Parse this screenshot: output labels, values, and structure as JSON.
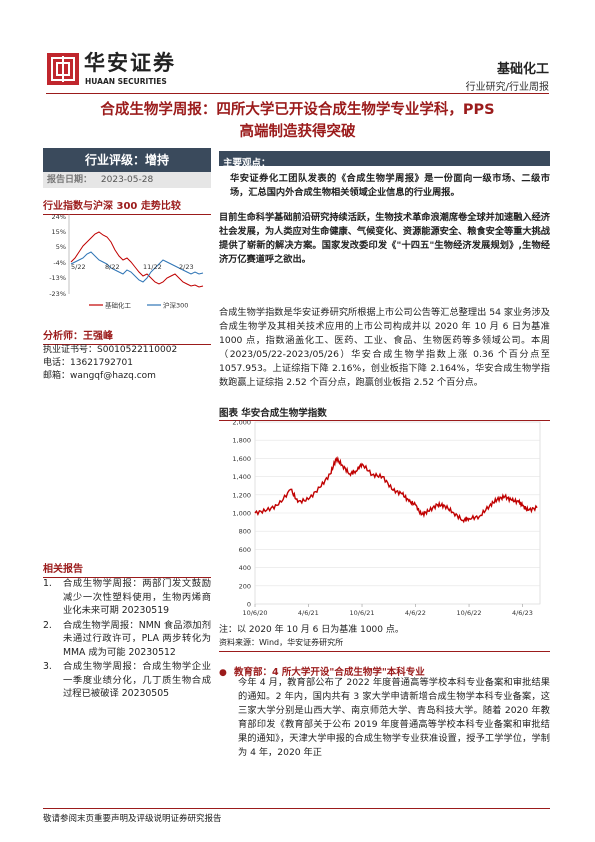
{
  "header": {
    "logo_cn": "华安证券",
    "logo_en": "HUAAN SECURITIES",
    "sector": "基础化工",
    "doc_type": "行业研究/行业周报"
  },
  "title_lines": [
    "合成生物学周报：四所大学已开设合成生物学专业学科，PPS",
    "高端制造获得突破"
  ],
  "rating": {
    "label": "行业评级：增持",
    "date_label": "报告日期：",
    "date_value": "2023-05-28"
  },
  "index_chart": {
    "title": "行业指数与沪深 300 走势比较",
    "yticks": [
      "24%",
      "15%",
      "5%",
      "-4%",
      "-13%",
      "-23%"
    ],
    "xticks": [
      "5/22",
      "8/22",
      "11/22",
      "2/23"
    ],
    "legend": [
      "基础化工",
      "沪深300"
    ]
  },
  "analyst": {
    "name": "分析师：王强峰",
    "cert_label": "执业证书号：",
    "cert_value": "S0010522110002",
    "phone_label": "电话：",
    "phone_value": "13621792701",
    "email_label": "邮箱：",
    "email_value": "wangqf@hazq.com"
  },
  "related": {
    "title": "相关报告",
    "items": [
      {
        "num": "1.",
        "text": "合成生物学周报：两部门发文鼓励减少一次性塑料使用，生物丙烯商业化未来可期 20230519"
      },
      {
        "num": "2.",
        "text": "合成生物学周报：NMN 食品添加剂未通过行政许可，PLA 两步转化为 MMA 成为可能 20230512"
      },
      {
        "num": "3.",
        "text": "合成生物学周报：合成生物学企业一季度业绩分化，几丁质生物合成过程已被破译 20230505"
      }
    ]
  },
  "main_points": {
    "title": "主要观点：",
    "p1": "华安证券化工团队发表的《合成生物学周报》是一份面向一级市场、二级市场，汇总国内外合成生物相关领域企业信息的行业周报。",
    "p2": "目前生命科学基础前沿研究持续活跃，生物技术革命浪潮席卷全球并加速融入经济社会发展，为人类应对生命健康、气候变化、资源能源安全、粮食安全等重大挑战提供了崭新的解决方案。国家发改委印发《\"十四五\"生物经济发展规划》,生物经济万亿赛道呼之欲出。",
    "p3": "合成生物学指数是华安证券研究所根据上市公司公告等汇总整理出 54 家业务涉及合成生物学及其相关技术应用的上市公司构成并以 2020 年 10 月 6 日为基准 1000 点，指数涵盖化工、医药、工业、食品、生物医药等多领域公司。本周（2023/05/22-2023/05/26）华安合成生物学指数上涨 0.36 个百分点至 1057.953。上证综指下降 2.16%，创业板指下降 2.164%，华安合成生物学指数跑赢上证综指 2.52 个百分点，跑赢创业板指 2.52 个百分点。"
  },
  "figure": {
    "title": "图表 华安合成生物学指数",
    "note": "注：以 2020 年 10 月 6 日为基准 1000 点。",
    "source": "资料来源：Wind，华安证券研究所"
  },
  "chart_data": {
    "type": "line",
    "title": "图表 华安合成生物学指数",
    "xlabel": "",
    "ylabel": "",
    "ylim": [
      0,
      2000
    ],
    "yticks": [
      "2,000",
      "1,800",
      "1,600",
      "1,400",
      "1,200",
      "1,000",
      "800",
      "600",
      "400",
      "200",
      "0"
    ],
    "xticks": [
      "10/6/20",
      "4/6/21",
      "10/6/21",
      "4/6/22",
      "10/6/22",
      "4/6/23"
    ],
    "grid": true,
    "series": [
      {
        "color": "#c00000",
        "x": [
          "2020-10-06",
          "2020-11-15",
          "2020-12-25",
          "2021-02-05",
          "2021-03-01",
          "2021-04-06",
          "2021-05-15",
          "2021-06-20",
          "2021-07-10",
          "2021-08-01",
          "2021-08-25",
          "2021-09-15",
          "2021-10-06",
          "2021-11-10",
          "2021-12-15",
          "2022-01-20",
          "2022-02-20",
          "2022-03-15",
          "2022-04-06",
          "2022-04-26",
          "2022-05-20",
          "2022-06-20",
          "2022-07-15",
          "2022-08-15",
          "2022-09-15",
          "2022-10-06",
          "2022-11-10",
          "2022-12-15",
          "2023-01-10",
          "2023-02-05",
          "2023-03-01",
          "2023-03-25",
          "2023-04-06",
          "2023-04-25",
          "2023-05-26"
        ],
        "values": [
          1000,
          1030,
          1090,
          1260,
          1120,
          1150,
          1280,
          1430,
          1600,
          1520,
          1430,
          1460,
          1540,
          1420,
          1400,
          1250,
          1210,
          1130,
          1090,
          980,
          1020,
          1090,
          1080,
          1000,
          920,
          940,
          960,
          1080,
          1150,
          1180,
          1140,
          1120,
          1080,
          1030,
          1058
        ]
      }
    ]
  },
  "section2": {
    "title": "教育部：4 所大学开设\"合成生物学\"本科专业",
    "p": "今年 4 月，教育部公布了 2022 年度普通高等学校本科专业备案和审批结果的通知。2 年内，国内共有 3 家大学申请新增合成生物学本科专业备案，这三家大学分别是山西大学、南京师范大学、青岛科技大学。随着 2020 年教育部印发《教育部关于公布 2019 年度普通高等学校本科专业备案和审批结果的通知》，天津大学申报的合成生物学专业获准设置，授予工学学位，学制为 4 年，2020 年正"
  },
  "footer": {
    "text": "敬请参阅末页重要声明及评级说明证券研究报告"
  }
}
